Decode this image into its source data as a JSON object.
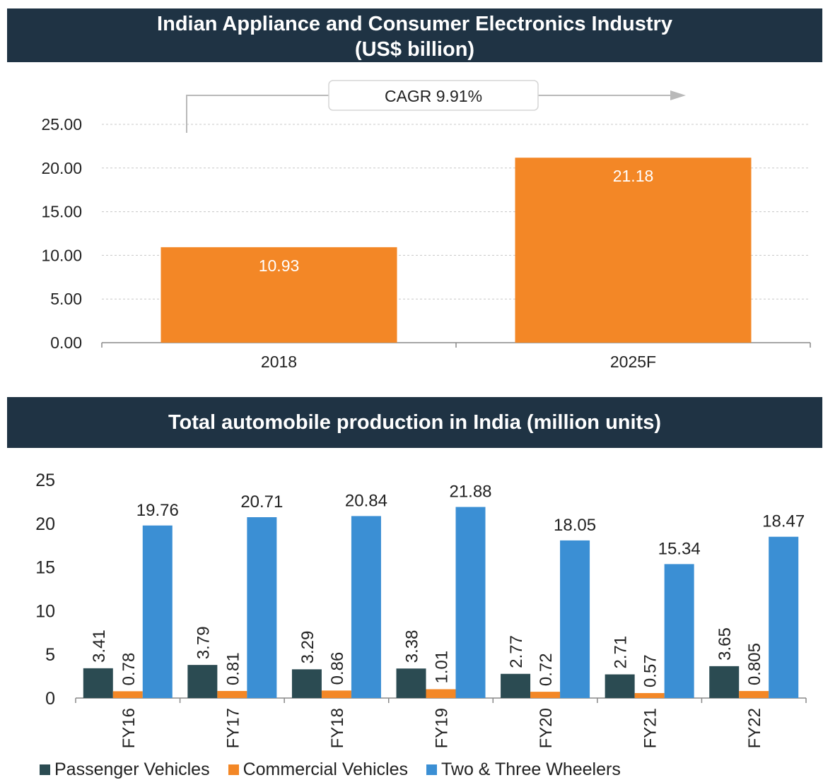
{
  "charts": {
    "top": {
      "title_line1": "Indian Appliance and Consumer Electronics Industry",
      "title_line2": "(US$ billion)",
      "cagr_label": "CAGR 9.91%"
    },
    "bottom": {
      "title": "Total automobile production in India (million units)"
    }
  },
  "colors": {
    "banner": "#1f3344",
    "orange": "#f38726",
    "passenger": "#2b4b52",
    "commercial": "#f38726",
    "two_three": "#3b8fd4"
  },
  "chart_data": [
    {
      "type": "bar",
      "title": "Indian Appliance and Consumer Electronics Industry (US$ billion)",
      "categories": [
        "2018",
        "2025F"
      ],
      "values": [
        10.93,
        21.18
      ],
      "value_labels": [
        "10.93",
        "21.18"
      ],
      "yticks": [
        "0.00",
        "5.00",
        "10.00",
        "15.00",
        "20.00",
        "25.00"
      ],
      "ylim": [
        0,
        25
      ],
      "annotation": "CAGR 9.91%",
      "grid": true
    },
    {
      "type": "bar",
      "title": "Total automobile production in India (million units)",
      "categories": [
        "FY16",
        "FY17",
        "FY18",
        "FY19",
        "FY20",
        "FY21",
        "FY22"
      ],
      "series": [
        {
          "name": "Passenger Vehicles",
          "values": [
            3.41,
            3.79,
            3.29,
            3.38,
            2.77,
            2.71,
            3.65
          ],
          "labels": [
            "3.41",
            "3.79",
            "3.29",
            "3.38",
            "2.77",
            "2.71",
            "3.65"
          ]
        },
        {
          "name": "Commercial Vehicles",
          "values": [
            0.78,
            0.81,
            0.86,
            1.01,
            0.72,
            0.57,
            0.805
          ],
          "labels": [
            "0.78",
            "0.81",
            "0.86",
            "1.01",
            "0.72",
            "0.57",
            "0.805"
          ]
        },
        {
          "name": "Two & Three Wheelers",
          "values": [
            19.76,
            20.71,
            20.84,
            21.88,
            18.05,
            15.34,
            18.47
          ],
          "labels": [
            "19.76",
            "20.71",
            "20.84",
            "21.88",
            "18.05",
            "15.34",
            "18.47"
          ]
        }
      ],
      "yticks": [
        "0",
        "5",
        "10",
        "15",
        "20",
        "25"
      ],
      "ylim": [
        0,
        25
      ],
      "legend_position": "bottom",
      "grid": false
    }
  ]
}
